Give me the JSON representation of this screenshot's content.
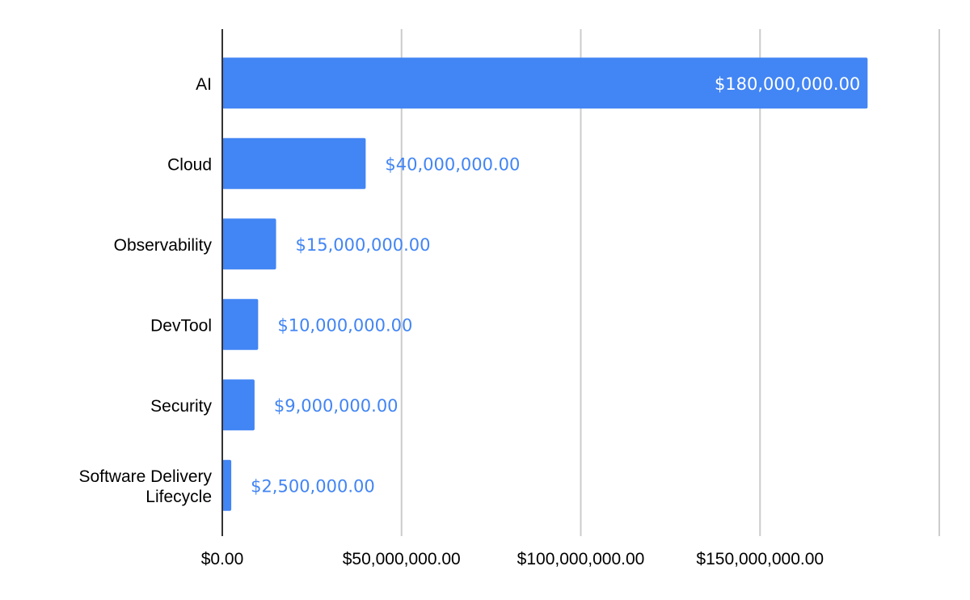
{
  "chart_data": {
    "type": "bar",
    "orientation": "horizontal",
    "categories": [
      [
        "AI"
      ],
      [
        "Cloud"
      ],
      [
        "Observability"
      ],
      [
        "DevTool"
      ],
      [
        "Security"
      ],
      [
        "Software Delivery",
        "Lifecycle"
      ]
    ],
    "values": [
      180000000,
      40000000,
      15000000,
      10000000,
      9000000,
      2500000
    ],
    "data_labels": [
      "$180,000,000.00",
      "$40,000,000.00",
      "$15,000,000.00",
      "$10,000,000.00",
      "$9,000,000.00",
      "$2,500,000.00"
    ],
    "x_ticks": [
      0,
      50000000,
      100000000,
      150000000,
      200000000
    ],
    "x_tick_labels": [
      "$0.00",
      "$50,000,000.00",
      "$100,000,000.00",
      "$150,000,000.00",
      ""
    ],
    "xlim": [
      0,
      200000000
    ],
    "title": "",
    "xlabel": "",
    "ylabel": "",
    "grid": true,
    "legend": "none",
    "bar_color": "#4285f4",
    "inside_label_color": "#ffffff",
    "outside_label_color": "#4285f4"
  }
}
